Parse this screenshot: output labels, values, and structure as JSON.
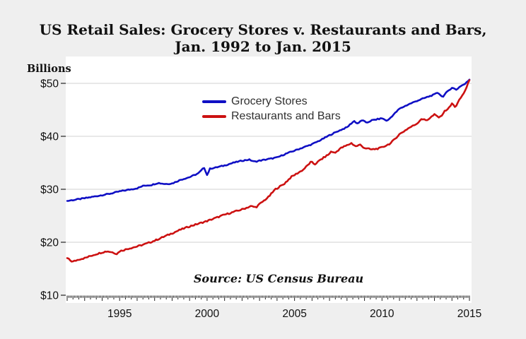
{
  "title_line1": "US Retail Sales: Grocery Stores v. Restaurants and Bars,",
  "title_line2": "Jan. 1992 to Jan. 2015",
  "y_axis_unit_label": "Billions",
  "source_note": "Source: US Census Bureau",
  "colors": {
    "background": "#efefef",
    "plot_background": "#ffffff",
    "gridline": "#d9d9d9",
    "tick": "#222222",
    "text": "#111111",
    "grocery_blue": "#0f0fc4",
    "restaurants_red": "#cc1111"
  },
  "chart_data": {
    "type": "line",
    "title": "US Retail Sales: Grocery Stores v. Restaurants and Bars, Jan. 1992 to Jan. 2015",
    "xlabel": "",
    "ylabel": "Billions",
    "units": "billions of US dollars per month",
    "frequency": "monthly",
    "x_range": [
      1992.0,
      2015.0
    ],
    "y_range": [
      10,
      52
    ],
    "grid": "horizontal",
    "legend_position": "inside-top-center",
    "y_ticks": [
      {
        "value": 10,
        "label": "$10"
      },
      {
        "value": 20,
        "label": "$20"
      },
      {
        "value": 30,
        "label": "$30"
      },
      {
        "value": 40,
        "label": "$40"
      },
      {
        "value": 50,
        "label": "$50"
      }
    ],
    "x_ticks": [
      {
        "value": 1995,
        "label": "1995"
      },
      {
        "value": 2000,
        "label": "2000"
      },
      {
        "value": 2005,
        "label": "2005"
      },
      {
        "value": 2010,
        "label": "2010"
      },
      {
        "value": 2015,
        "label": "2015"
      }
    ],
    "minor_tick_interval_months": 1,
    "medium_tick_interval_months": 4,
    "series": [
      {
        "name": "Grocery Stores",
        "color": "#0f0fc4",
        "points": [
          [
            1992.0,
            27.8
          ],
          [
            1992.4,
            28.0
          ],
          [
            1992.8,
            28.2
          ],
          [
            1993.0,
            28.3
          ],
          [
            1993.5,
            28.6
          ],
          [
            1994.0,
            28.9
          ],
          [
            1994.5,
            29.2
          ],
          [
            1995.0,
            29.6
          ],
          [
            1995.5,
            29.9
          ],
          [
            1996.0,
            30.2
          ],
          [
            1996.4,
            30.7
          ],
          [
            1996.8,
            30.8
          ],
          [
            1997.2,
            31.2
          ],
          [
            1997.6,
            31.0
          ],
          [
            1998.0,
            31.1
          ],
          [
            1998.5,
            31.8
          ],
          [
            1999.0,
            32.3
          ],
          [
            1999.5,
            33.0
          ],
          [
            1999.83,
            34.1
          ],
          [
            2000.0,
            32.7
          ],
          [
            2000.17,
            33.9
          ],
          [
            2000.5,
            34.1
          ],
          [
            2001.0,
            34.5
          ],
          [
            2001.5,
            35.0
          ],
          [
            2002.0,
            35.4
          ],
          [
            2002.4,
            35.6
          ],
          [
            2002.7,
            35.2
          ],
          [
            2003.0,
            35.4
          ],
          [
            2003.5,
            35.7
          ],
          [
            2004.0,
            36.0
          ],
          [
            2004.5,
            36.7
          ],
          [
            2005.0,
            37.3
          ],
          [
            2005.5,
            37.9
          ],
          [
            2006.0,
            38.5
          ],
          [
            2006.5,
            39.3
          ],
          [
            2007.0,
            40.2
          ],
          [
            2007.5,
            41.0
          ],
          [
            2008.0,
            41.7
          ],
          [
            2008.4,
            42.9
          ],
          [
            2008.6,
            42.4
          ],
          [
            2008.9,
            43.1
          ],
          [
            2009.1,
            42.5
          ],
          [
            2009.4,
            43.0
          ],
          [
            2009.7,
            43.2
          ],
          [
            2010.0,
            43.4
          ],
          [
            2010.3,
            42.9
          ],
          [
            2010.6,
            43.9
          ],
          [
            2011.0,
            45.2
          ],
          [
            2011.5,
            46.0
          ],
          [
            2012.0,
            46.7
          ],
          [
            2012.5,
            47.3
          ],
          [
            2013.0,
            47.9
          ],
          [
            2013.2,
            48.3
          ],
          [
            2013.45,
            47.4
          ],
          [
            2013.7,
            48.3
          ],
          [
            2014.0,
            49.2
          ],
          [
            2014.25,
            48.8
          ],
          [
            2014.5,
            49.5
          ],
          [
            2014.75,
            49.9
          ],
          [
            2015.0,
            50.7
          ]
        ]
      },
      {
        "name": "Restaurants and Bars",
        "color": "#cc1111",
        "points": [
          [
            1992.0,
            17.0
          ],
          [
            1992.3,
            16.3
          ],
          [
            1992.7,
            16.8
          ],
          [
            1993.0,
            17.0
          ],
          [
            1993.5,
            17.6
          ],
          [
            1994.0,
            18.1
          ],
          [
            1994.3,
            18.3
          ],
          [
            1994.6,
            18.1
          ],
          [
            1994.85,
            17.8
          ],
          [
            1995.0,
            18.3
          ],
          [
            1995.5,
            18.8
          ],
          [
            1996.0,
            19.2
          ],
          [
            1996.5,
            19.7
          ],
          [
            1997.0,
            20.3
          ],
          [
            1997.5,
            21.0
          ],
          [
            1998.0,
            21.7
          ],
          [
            1998.5,
            22.4
          ],
          [
            1999.0,
            23.0
          ],
          [
            1999.5,
            23.5
          ],
          [
            2000.0,
            24.0
          ],
          [
            2000.5,
            24.6
          ],
          [
            2001.0,
            25.2
          ],
          [
            2001.5,
            25.7
          ],
          [
            2002.0,
            26.2
          ],
          [
            2002.5,
            26.8
          ],
          [
            2002.8,
            26.6
          ],
          [
            2003.0,
            27.2
          ],
          [
            2003.5,
            28.5
          ],
          [
            2003.9,
            30.0
          ],
          [
            2004.0,
            30.2
          ],
          [
            2004.4,
            31.0
          ],
          [
            2004.8,
            32.3
          ],
          [
            2005.0,
            32.7
          ],
          [
            2005.5,
            33.7
          ],
          [
            2005.95,
            35.2
          ],
          [
            2006.15,
            34.7
          ],
          [
            2006.5,
            35.6
          ],
          [
            2007.0,
            36.7
          ],
          [
            2007.1,
            37.2
          ],
          [
            2007.3,
            36.8
          ],
          [
            2007.6,
            37.7
          ],
          [
            2008.0,
            38.3
          ],
          [
            2008.25,
            38.7
          ],
          [
            2008.5,
            38.1
          ],
          [
            2008.75,
            38.4
          ],
          [
            2009.0,
            37.8
          ],
          [
            2009.4,
            37.5
          ],
          [
            2009.8,
            37.7
          ],
          [
            2010.0,
            37.9
          ],
          [
            2010.5,
            38.7
          ],
          [
            2011.0,
            40.4
          ],
          [
            2011.5,
            41.5
          ],
          [
            2012.0,
            42.4
          ],
          [
            2012.25,
            43.3
          ],
          [
            2012.55,
            43.0
          ],
          [
            2013.0,
            44.1
          ],
          [
            2013.3,
            43.5
          ],
          [
            2013.6,
            44.8
          ],
          [
            2013.85,
            45.4
          ],
          [
            2014.0,
            46.2
          ],
          [
            2014.2,
            45.5
          ],
          [
            2014.45,
            47.0
          ],
          [
            2014.65,
            48.0
          ],
          [
            2014.85,
            49.3
          ],
          [
            2015.0,
            50.6
          ]
        ]
      }
    ]
  }
}
